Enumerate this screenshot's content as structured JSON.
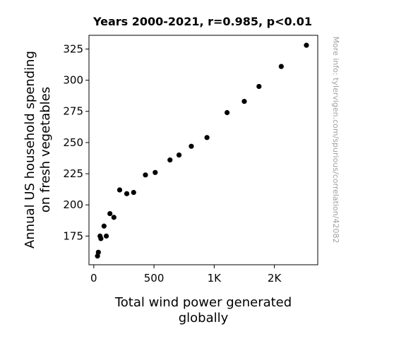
{
  "chart_data": {
    "type": "scatter",
    "title": "Years 2000-2021, r=0.985, p<0.01",
    "xlabel": [
      "Total wind power generated",
      "globally"
    ],
    "ylabel": [
      "Annual US household spending",
      "on fresh vegetables"
    ],
    "xlim": [
      -40,
      1860
    ],
    "ylim": [
      152,
      336
    ],
    "x_ticks": [
      {
        "value": 0,
        "label": "0"
      },
      {
        "value": 500,
        "label": "500"
      },
      {
        "value": 1000,
        "label": "1K"
      },
      {
        "value": 1500,
        "label": "2K"
      }
    ],
    "y_ticks": [
      {
        "value": 175,
        "label": "175"
      },
      {
        "value": 200,
        "label": "200"
      },
      {
        "value": 225,
        "label": "225"
      },
      {
        "value": 250,
        "label": "250"
      },
      {
        "value": 275,
        "label": "275"
      },
      {
        "value": 300,
        "label": "300"
      },
      {
        "value": 325,
        "label": "325"
      }
    ],
    "grid": false,
    "marker_color": "#000000",
    "points": [
      {
        "x": 31,
        "y": 159
      },
      {
        "x": 38,
        "y": 162
      },
      {
        "x": 52,
        "y": 175
      },
      {
        "x": 59,
        "y": 173
      },
      {
        "x": 85,
        "y": 183
      },
      {
        "x": 104,
        "y": 175
      },
      {
        "x": 134,
        "y": 193
      },
      {
        "x": 167,
        "y": 190
      },
      {
        "x": 215,
        "y": 212
      },
      {
        "x": 274,
        "y": 209
      },
      {
        "x": 331,
        "y": 210
      },
      {
        "x": 429,
        "y": 224
      },
      {
        "x": 510,
        "y": 226
      },
      {
        "x": 633,
        "y": 236
      },
      {
        "x": 708,
        "y": 240
      },
      {
        "x": 810,
        "y": 247
      },
      {
        "x": 940,
        "y": 254
      },
      {
        "x": 1107,
        "y": 274
      },
      {
        "x": 1250,
        "y": 283
      },
      {
        "x": 1372,
        "y": 295
      },
      {
        "x": 1557,
        "y": 311
      },
      {
        "x": 1766,
        "y": 328
      }
    ]
  },
  "watermark": "More info: tylervigen.com/spurious/correlation/42082"
}
